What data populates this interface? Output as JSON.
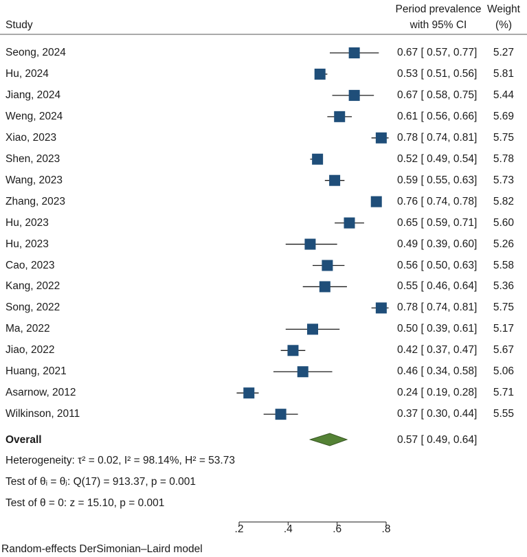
{
  "chart_data": {
    "type": "forest",
    "headers": {
      "study": "Study",
      "effect_line1": "Period prevalence",
      "effect_line2": "with 95% CI",
      "weight_line1": "Weight",
      "weight_line2": "(%)"
    },
    "studies": [
      {
        "name": "Seong, 2024",
        "est": 0.67,
        "lo": 0.57,
        "hi": 0.77,
        "ci_text": "0.67 [ 0.57,  0.77]",
        "weight": "5.27"
      },
      {
        "name": "Hu, 2024",
        "est": 0.53,
        "lo": 0.51,
        "hi": 0.56,
        "ci_text": "0.53 [ 0.51,  0.56]",
        "weight": "5.81"
      },
      {
        "name": "Jiang, 2024",
        "est": 0.67,
        "lo": 0.58,
        "hi": 0.75,
        "ci_text": "0.67 [ 0.58,  0.75]",
        "weight": "5.44"
      },
      {
        "name": "Weng, 2024",
        "est": 0.61,
        "lo": 0.56,
        "hi": 0.66,
        "ci_text": "0.61 [ 0.56,  0.66]",
        "weight": "5.69"
      },
      {
        "name": "Xiao, 2023",
        "est": 0.78,
        "lo": 0.74,
        "hi": 0.81,
        "ci_text": "0.78 [ 0.74,  0.81]",
        "weight": "5.75"
      },
      {
        "name": "Shen, 2023",
        "est": 0.52,
        "lo": 0.49,
        "hi": 0.54,
        "ci_text": "0.52 [ 0.49,  0.54]",
        "weight": "5.78"
      },
      {
        "name": "Wang, 2023",
        "est": 0.59,
        "lo": 0.55,
        "hi": 0.63,
        "ci_text": "0.59 [ 0.55,  0.63]",
        "weight": "5.73"
      },
      {
        "name": "Zhang, 2023",
        "est": 0.76,
        "lo": 0.74,
        "hi": 0.78,
        "ci_text": "0.76 [ 0.74,  0.78]",
        "weight": "5.82"
      },
      {
        "name": "Hu, 2023",
        "est": 0.65,
        "lo": 0.59,
        "hi": 0.71,
        "ci_text": "0.65 [ 0.59,  0.71]",
        "weight": "5.60"
      },
      {
        "name": "Hu, 2023",
        "est": 0.49,
        "lo": 0.39,
        "hi": 0.6,
        "ci_text": "0.49 [ 0.39,  0.60]",
        "weight": "5.26"
      },
      {
        "name": "Cao, 2023",
        "est": 0.56,
        "lo": 0.5,
        "hi": 0.63,
        "ci_text": "0.56 [ 0.50,  0.63]",
        "weight": "5.58"
      },
      {
        "name": "Kang, 2022",
        "est": 0.55,
        "lo": 0.46,
        "hi": 0.64,
        "ci_text": "0.55 [ 0.46,  0.64]",
        "weight": "5.36"
      },
      {
        "name": "Song, 2022",
        "est": 0.78,
        "lo": 0.74,
        "hi": 0.81,
        "ci_text": "0.78 [ 0.74,  0.81]",
        "weight": "5.75"
      },
      {
        "name": "Ma, 2022",
        "est": 0.5,
        "lo": 0.39,
        "hi": 0.61,
        "ci_text": "0.50 [ 0.39,  0.61]",
        "weight": "5.17"
      },
      {
        "name": "Jiao, 2022",
        "est": 0.42,
        "lo": 0.37,
        "hi": 0.47,
        "ci_text": "0.42 [ 0.37,  0.47]",
        "weight": "5.67"
      },
      {
        "name": "Huang, 2021",
        "est": 0.46,
        "lo": 0.34,
        "hi": 0.58,
        "ci_text": "0.46 [ 0.34,  0.58]",
        "weight": "5.06"
      },
      {
        "name": "Asarnow, 2012",
        "est": 0.24,
        "lo": 0.19,
        "hi": 0.28,
        "ci_text": "0.24 [ 0.19,  0.28]",
        "weight": "5.71"
      },
      {
        "name": "Wilkinson, 2011",
        "est": 0.37,
        "lo": 0.3,
        "hi": 0.44,
        "ci_text": "0.37 [ 0.30,  0.44]",
        "weight": "5.55"
      }
    ],
    "overall": {
      "label": "Overall",
      "est": 0.57,
      "lo": 0.49,
      "hi": 0.64,
      "ci_text": "0.57 [ 0.49,  0.64]"
    },
    "notes": {
      "heterogeneity": "Heterogeneity: τ² = 0.02, I² = 98.14%, H² = 53.73",
      "test_equal": "Test of θᵢ = θⱼ: Q(17) = 913.37, p = 0.001",
      "test_zero": "Test of θ = 0: z = 15.10, p = 0.001",
      "model": "Random-effects DerSimonian–Laird model"
    },
    "x_axis": {
      "min": 0.2,
      "max": 0.8,
      "ticks": [
        0.2,
        0.4,
        0.6,
        0.8
      ],
      "tick_labels": [
        ".2",
        ".4",
        ".6",
        ".8"
      ]
    },
    "colors": {
      "marker": "#1f4e79",
      "diamond": "#548235",
      "diamond_stroke": "#375623",
      "line": "#1a1a1a"
    }
  }
}
